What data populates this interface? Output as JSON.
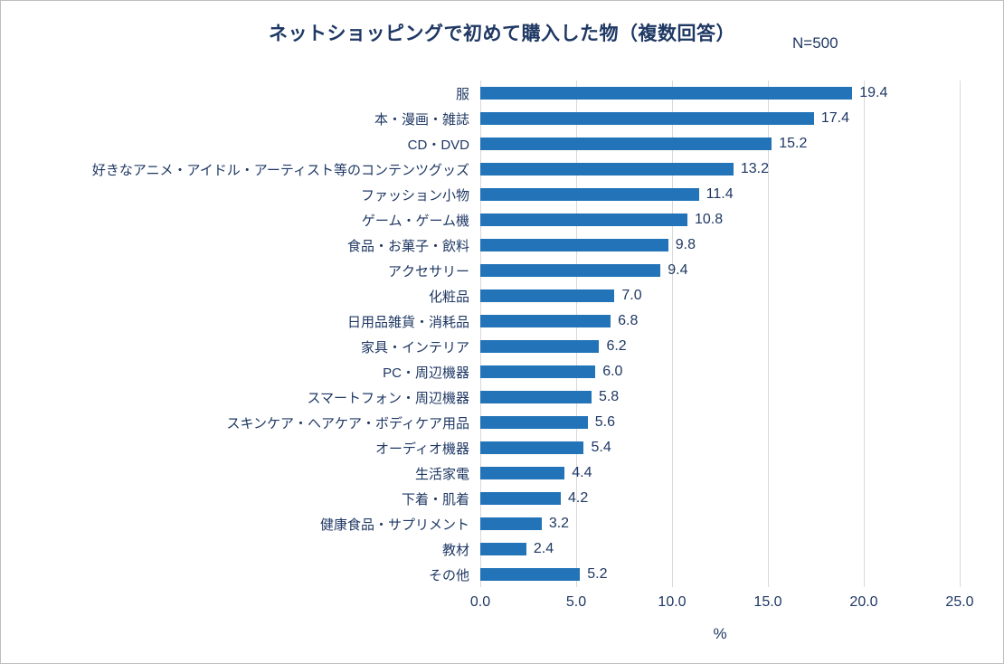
{
  "title": "ネットショッピングで初めて購入した物（複数回答）",
  "n_label": "N=500",
  "chart_data": {
    "type": "bar",
    "orientation": "horizontal",
    "title": "ネットショッピングで初めて購入した物（複数回答）",
    "subtitle": "N=500",
    "categories": [
      "服",
      "本・漫画・雑誌",
      "CD・DVD",
      "好きなアニメ・アイドル・アーティスト等のコンテンツグッズ",
      "ファッション小物",
      "ゲーム・ゲーム機",
      "食品・お菓子・飲料",
      "アクセサリー",
      "化粧品",
      "日用品雑貨・消耗品",
      "家具・インテリア",
      "PC・周辺機器",
      "スマートフォン・周辺機器",
      "スキンケア・ヘアケア・ボディケア用品",
      "オーディオ機器",
      "生活家電",
      "下着・肌着",
      "健康食品・サプリメント",
      "教材",
      "その他"
    ],
    "values": [
      19.4,
      17.4,
      15.2,
      13.2,
      11.4,
      10.8,
      9.8,
      9.4,
      7.0,
      6.8,
      6.2,
      6.0,
      5.8,
      5.6,
      5.4,
      4.4,
      4.2,
      3.2,
      2.4,
      5.2
    ],
    "xlabel": "%",
    "ylabel": "",
    "xlim": [
      0,
      25
    ],
    "xticks": [
      0,
      5,
      10,
      15,
      20,
      25
    ],
    "xtick_labels": [
      "0.0",
      "5.0",
      "10.0",
      "15.0",
      "20.0",
      "25.0"
    ],
    "grid": true,
    "legend": false,
    "bar_color": "#2273b8",
    "text_color": "#1f3864",
    "gridline_color": "#d9d9d9"
  }
}
